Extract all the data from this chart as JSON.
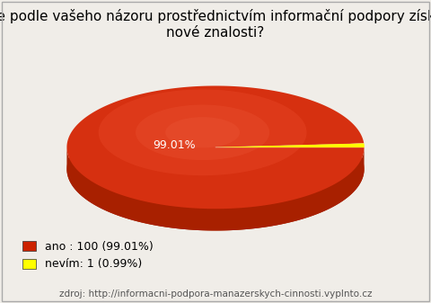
{
  "title": "Lze podle vašeho názoru prostřednictvím informační podpory získat\nnové znalosti?",
  "slices": [
    99.01,
    0.99
  ],
  "labels": [
    "ano",
    "nevím"
  ],
  "counts": [
    100,
    1
  ],
  "colors_top": [
    "#d63010",
    "#ffff00"
  ],
  "colors_side": [
    "#a82000",
    "#cccc00"
  ],
  "slice_label": "99.01%",
  "legend_labels": [
    "ano : 100 (99.01%)",
    "nevím: 1 (0.99%)"
  ],
  "legend_colors": [
    "#cc2200",
    "#ffff00"
  ],
  "source": "zdroj: http://informacni-podpora-manazerskych-cinnosti.vyplnto.cz",
  "bg_color": "#f0ede8",
  "title_fontsize": 11,
  "legend_fontsize": 9,
  "source_fontsize": 7.5
}
